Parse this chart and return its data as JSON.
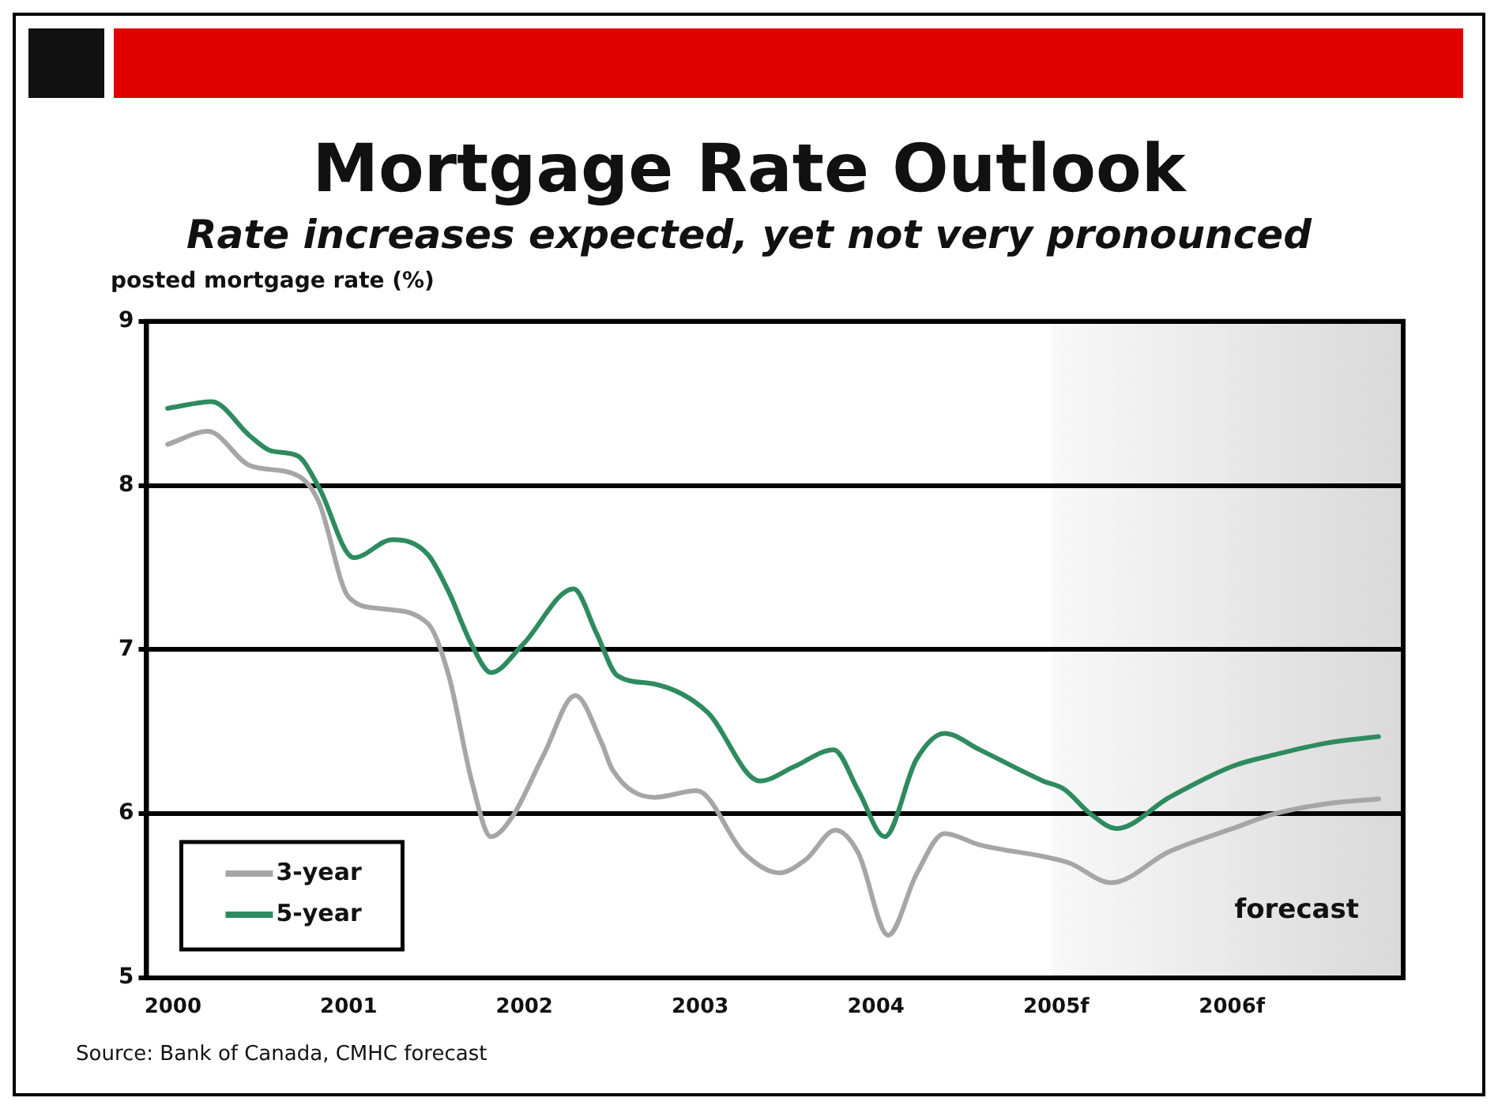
{
  "chart_data": {
    "type": "line",
    "title": "Mortgage Rate Outlook",
    "subtitle": "Rate increases expected, yet not very pronounced",
    "ylabel": "posted mortgage rate (%)",
    "annotations": [
      "Source: Bank of Canada, CMHC forecast"
    ],
    "xlim": [
      1999.85,
      2007
    ],
    "xticks": [
      2000,
      2001,
      2002,
      2003,
      2004,
      {
        "value": 2005,
        "label": "2005f"
      },
      {
        "value": 2006,
        "label": "2006f"
      }
    ],
    "ylim": [
      5,
      9
    ],
    "yticks": [
      5,
      6,
      7,
      8,
      9
    ],
    "grid": "y",
    "legend": "bottom left",
    "marker": "none",
    "line_style": "solid",
    "bands": [
      {
        "axis": "x",
        "from": 2005,
        "to": 2007,
        "label": "forecast",
        "color": "#d9d9d9"
      }
    ],
    "series": [
      {
        "name": "3-year",
        "color": "#a6a6a6",
        "x": [
          1999.97,
          2000.2,
          2000.44,
          2000.71,
          2000.83,
          2001.0,
          2001.18,
          2001.45,
          2001.57,
          2001.7,
          2001.81,
          2001.93,
          2002.11,
          2002.29,
          2002.44,
          2002.5,
          2002.74,
          2002.98,
          2003.25,
          2003.45,
          2003.6,
          2003.77,
          2003.9,
          2004.07,
          2004.23,
          2004.39,
          2004.59,
          2004.95,
          2005.1,
          2005.34,
          2005.67,
          2006.03,
          2006.27,
          2006.56,
          2006.86
        ],
        "values": [
          8.25,
          8.33,
          8.12,
          8.06,
          7.9,
          7.32,
          7.25,
          7.16,
          6.84,
          6.2,
          5.86,
          5.98,
          6.36,
          6.72,
          6.43,
          6.27,
          6.1,
          6.14,
          5.76,
          5.64,
          5.72,
          5.9,
          5.76,
          5.26,
          5.63,
          5.88,
          5.81,
          5.74,
          5.7,
          5.58,
          5.77,
          5.91,
          6.0,
          6.06,
          6.09
        ]
      },
      {
        "name": "5-year",
        "color": "#2e8b5f",
        "x": [
          1999.97,
          2000.22,
          2000.44,
          2000.56,
          2000.71,
          2000.83,
          2001.03,
          2001.25,
          2001.45,
          2001.57,
          2001.7,
          2001.81,
          2001.99,
          2002.28,
          2002.41,
          2002.53,
          2002.74,
          2003.04,
          2003.34,
          2003.54,
          2003.76,
          2003.9,
          2004.05,
          2004.23,
          2004.39,
          2004.59,
          2004.95,
          2005.07,
          2005.22,
          2005.37,
          2005.67,
          2006.03,
          2006.27,
          2006.56,
          2006.86
        ],
        "values": [
          8.47,
          8.51,
          8.3,
          8.21,
          8.18,
          7.99,
          7.56,
          7.67,
          7.58,
          7.35,
          7.03,
          6.86,
          7.03,
          7.37,
          7.1,
          6.84,
          6.79,
          6.62,
          6.2,
          6.29,
          6.39,
          6.14,
          5.86,
          6.33,
          6.49,
          6.39,
          6.2,
          6.15,
          6.0,
          5.91,
          6.1,
          6.29,
          6.36,
          6.43,
          6.47
        ]
      }
    ]
  }
}
